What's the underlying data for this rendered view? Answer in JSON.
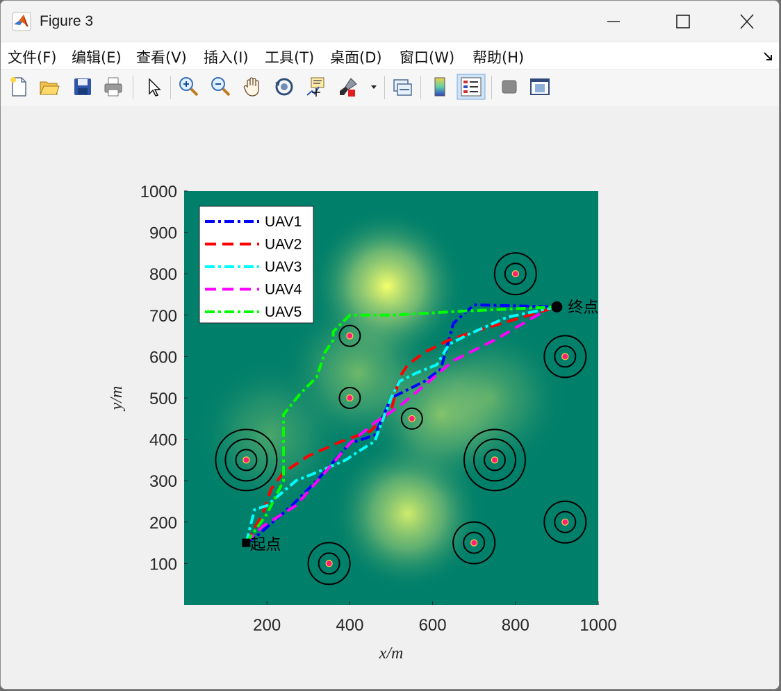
{
  "window": {
    "title": "Figure 3"
  },
  "menu": [
    "文件(F)",
    "编辑(E)",
    "查看(V)",
    "插入(I)",
    "工具(T)",
    "桌面(D)",
    "窗口(W)",
    "帮助(H)"
  ],
  "toolbar": {
    "icons": [
      "new-figure-icon",
      "open-file-icon",
      "save-icon",
      "print-icon",
      "select-pointer-icon",
      "zoom-in-icon",
      "zoom-out-icon",
      "pan-hand-icon",
      "rotate-3d-icon",
      "data-cursor-icon",
      "brush-icon",
      "brush-dropdown-icon",
      "link-plot-icon",
      "colorbar-icon",
      "legend-icon",
      "hide-plot-tools-icon",
      "show-plot-tools-icon"
    ]
  },
  "chart_data": {
    "type": "line",
    "xlabel": "x/m",
    "ylabel": "y/m",
    "xlim": [
      0,
      1000
    ],
    "ylim": [
      0,
      1000
    ],
    "xticks": [
      200,
      400,
      600,
      800,
      1000
    ],
    "yticks": [
      100,
      200,
      300,
      400,
      500,
      600,
      700,
      800,
      900,
      1000
    ],
    "legend_position": "top-left",
    "colors": {
      "background": "#007f6a",
      "terrain_peak": "#f5ff6b",
      "UAV1": "#0000ff",
      "UAV2": "#ff0000",
      "UAV3": "#00ffff",
      "UAV4": "#ff00ff",
      "UAV5": "#00ff00"
    },
    "terrain_peaks": [
      {
        "x": 490,
        "y": 770,
        "height": 1.0
      },
      {
        "x": 540,
        "y": 220,
        "height": 0.85
      },
      {
        "x": 620,
        "y": 460,
        "height": 0.55
      },
      {
        "x": 420,
        "y": 560,
        "height": 0.45
      },
      {
        "x": 740,
        "y": 500,
        "height": 0.35
      },
      {
        "x": 210,
        "y": 410,
        "height": 0.3
      }
    ],
    "threats": [
      {
        "x": 800,
        "y": 800,
        "rings": 2
      },
      {
        "x": 920,
        "y": 600,
        "rings": 2
      },
      {
        "x": 400,
        "y": 650,
        "rings": 1
      },
      {
        "x": 400,
        "y": 500,
        "rings": 1
      },
      {
        "x": 550,
        "y": 450,
        "rings": 1
      },
      {
        "x": 150,
        "y": 350,
        "rings": 3
      },
      {
        "x": 750,
        "y": 350,
        "rings": 3
      },
      {
        "x": 920,
        "y": 200,
        "rings": 2
      },
      {
        "x": 700,
        "y": 150,
        "rings": 2
      },
      {
        "x": 350,
        "y": 100,
        "rings": 2
      }
    ],
    "start": {
      "x": 150,
      "y": 150,
      "label": "起点"
    },
    "end": {
      "x": 900,
      "y": 720,
      "label": "终点"
    },
    "series": [
      {
        "name": "UAV1",
        "dash": "dashdot",
        "points": [
          [
            150,
            150
          ],
          [
            180,
            170
          ],
          [
            260,
            240
          ],
          [
            320,
            300
          ],
          [
            400,
            390
          ],
          [
            460,
            410
          ],
          [
            500,
            500
          ],
          [
            540,
            520
          ],
          [
            580,
            540
          ],
          [
            620,
            570
          ],
          [
            650,
            680
          ],
          [
            700,
            725
          ],
          [
            900,
            720
          ]
        ]
      },
      {
        "name": "UAV2",
        "dash": "dashed",
        "points": [
          [
            150,
            150
          ],
          [
            190,
            220
          ],
          [
            210,
            280
          ],
          [
            240,
            320
          ],
          [
            300,
            360
          ],
          [
            380,
            395
          ],
          [
            450,
            420
          ],
          [
            500,
            470
          ],
          [
            520,
            550
          ],
          [
            540,
            580
          ],
          [
            580,
            610
          ],
          [
            640,
            640
          ],
          [
            700,
            660
          ],
          [
            900,
            720
          ]
        ]
      },
      {
        "name": "UAV3",
        "dash": "dashdot",
        "points": [
          [
            150,
            150
          ],
          [
            170,
            230
          ],
          [
            200,
            240
          ],
          [
            270,
            300
          ],
          [
            320,
            320
          ],
          [
            390,
            350
          ],
          [
            420,
            370
          ],
          [
            460,
            395
          ],
          [
            500,
            500
          ],
          [
            520,
            540
          ],
          [
            560,
            560
          ],
          [
            610,
            580
          ],
          [
            640,
            630
          ],
          [
            690,
            655
          ],
          [
            780,
            695
          ],
          [
            900,
            720
          ]
        ]
      },
      {
        "name": "UAV4",
        "dash": "dashed",
        "points": [
          [
            150,
            150
          ],
          [
            190,
            190
          ],
          [
            270,
            240
          ],
          [
            340,
            320
          ],
          [
            400,
            390
          ],
          [
            460,
            440
          ],
          [
            520,
            480
          ],
          [
            580,
            530
          ],
          [
            650,
            590
          ],
          [
            750,
            640
          ],
          [
            870,
            710
          ]
        ]
      },
      {
        "name": "UAV5",
        "dash": "dashdot",
        "points": [
          [
            150,
            150
          ],
          [
            200,
            220
          ],
          [
            240,
            300
          ],
          [
            240,
            460
          ],
          [
            280,
            510
          ],
          [
            320,
            550
          ],
          [
            340,
            610
          ],
          [
            360,
            640
          ],
          [
            360,
            660
          ],
          [
            400,
            700
          ],
          [
            500,
            700
          ],
          [
            680,
            710
          ],
          [
            900,
            720
          ]
        ]
      }
    ]
  }
}
